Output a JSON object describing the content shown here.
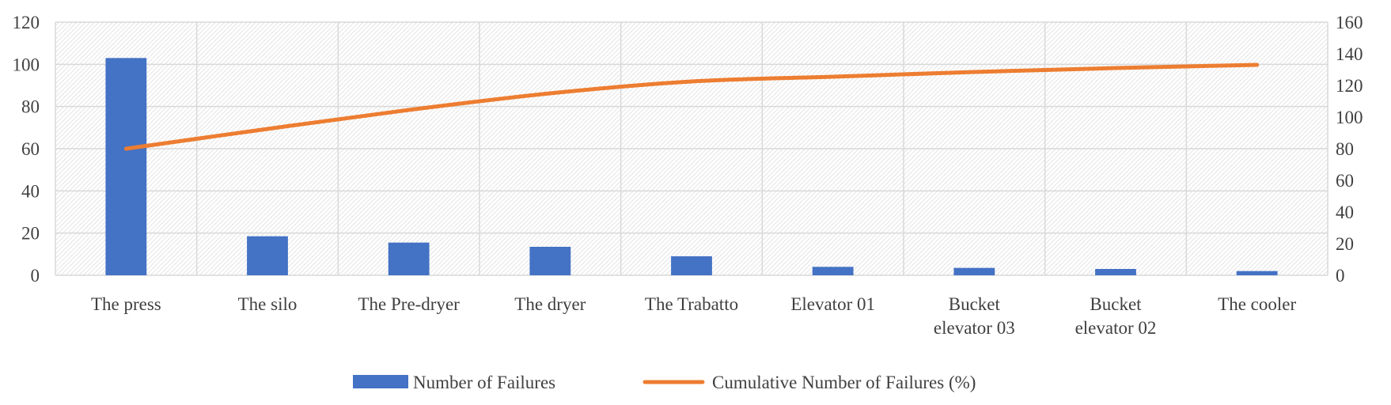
{
  "chart_data": {
    "type": "bar",
    "categories": [
      "The press",
      "The silo",
      "The Pre-dryer",
      "The dryer",
      "The Trabatto",
      "Elevator 01",
      "Bucket elevator 03",
      "Bucket elevator 02",
      "The cooler"
    ],
    "series": [
      {
        "name": "Number of Failures",
        "type": "bar",
        "axis": "left",
        "color": "#4472C4",
        "values": [
          103,
          18.5,
          15.5,
          13.5,
          9,
          4,
          3.5,
          3,
          2
        ]
      },
      {
        "name": "Cumulative Number of Failures (%)",
        "type": "line",
        "axis": "right",
        "color": "#ED7D31",
        "values": [
          80,
          92.5,
          104.5,
          115,
          122.5,
          125.5,
          128.5,
          131,
          133
        ]
      }
    ],
    "ylim_left": [
      0,
      120
    ],
    "yticks_left": [
      0,
      20,
      40,
      60,
      80,
      100,
      120
    ],
    "ylim_right": [
      0,
      160
    ],
    "yticks_right": [
      0,
      20,
      40,
      60,
      80,
      100,
      120,
      140,
      160
    ],
    "grid": true,
    "plot_background": "hatched",
    "legend_position": "bottom"
  }
}
